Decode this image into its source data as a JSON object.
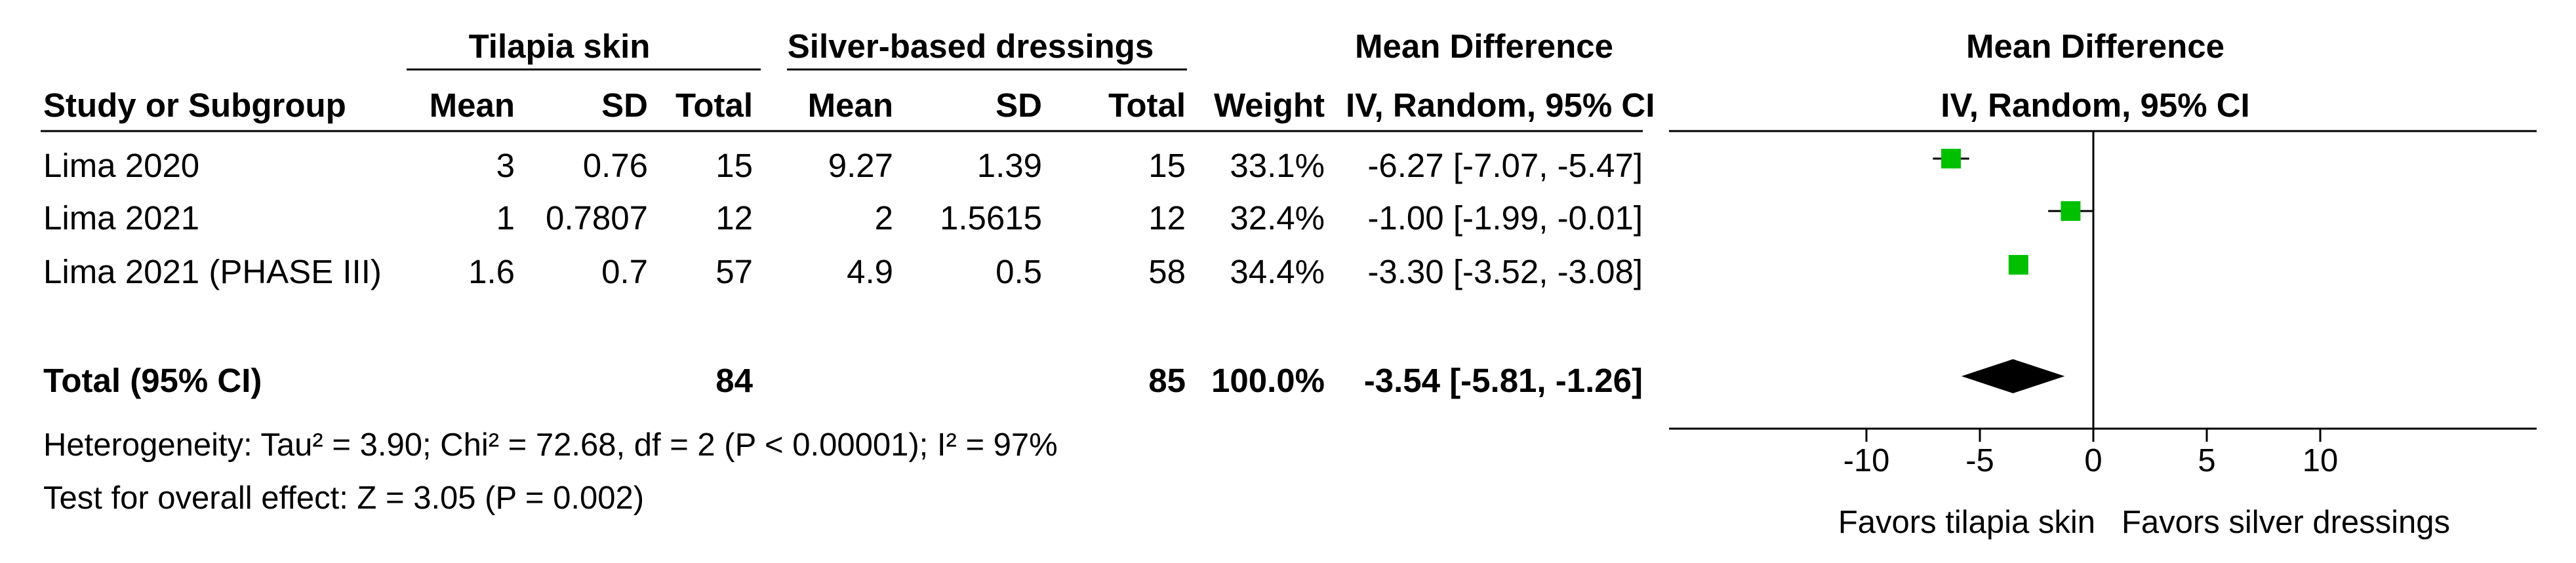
{
  "header": {
    "group1": "Tilapia skin",
    "group2": "Silver-based dressings",
    "effect_title": "Mean Difference",
    "plot_title": "Mean Difference",
    "study_col": "Study or Subgroup",
    "mean1": "Mean",
    "sd1": "SD",
    "total1": "Total",
    "mean2": "Mean",
    "sd2": "SD",
    "total2": "Total",
    "weight": "Weight",
    "method": "IV, Random, 95% CI",
    "plot_method": "IV, Random, 95% CI"
  },
  "studies": [
    {
      "name": "Lima 2020",
      "mean1": "3",
      "sd1": "0.76",
      "total1": "15",
      "mean2": "9.27",
      "sd2": "1.39",
      "total2": "15",
      "weight": "33.1%",
      "ci": "-6.27 [-7.07, -5.47]"
    },
    {
      "name": "Lima 2021",
      "mean1": "1",
      "sd1": "0.7807",
      "total1": "12",
      "mean2": "2",
      "sd2": "1.5615",
      "total2": "12",
      "weight": "32.4%",
      "ci": "-1.00 [-1.99, -0.01]"
    },
    {
      "name": "Lima 2021 (PHASE III)",
      "mean1": "1.6",
      "sd1": "0.7",
      "total1": "57",
      "mean2": "4.9",
      "sd2": "0.5",
      "total2": "58",
      "weight": "34.4%",
      "ci": "-3.30 [-3.52, -3.08]"
    }
  ],
  "total": {
    "name": "Total (95% CI)",
    "total1": "84",
    "total2": "85",
    "weight": "100.0%",
    "ci": "-3.54 [-5.81, -1.26]"
  },
  "heterogeneity": "Heterogeneity: Tau² = 3.90; Chi² = 72.68, df = 2 (P < 0.00001); I² = 97%",
  "overall_effect": "Test for overall effect: Z = 3.05 (P = 0.002)",
  "colors": {
    "marker": "#00c000",
    "diamond": "#000000",
    "line": "#000000"
  },
  "chart_data": {
    "type": "forest",
    "x": {
      "ticks": [
        -10,
        -5,
        0,
        5,
        10
      ],
      "tick_labels": [
        "-10",
        "-5",
        "0",
        "5",
        "10"
      ],
      "range": [
        -10,
        10
      ]
    },
    "points": [
      {
        "study": "Lima 2020",
        "md": -6.27,
        "lower": -7.07,
        "upper": -5.47,
        "weight": 33.1
      },
      {
        "study": "Lima 2021",
        "md": -1.0,
        "lower": -1.99,
        "upper": -0.01,
        "weight": 32.4
      },
      {
        "study": "Lima 2021 (PHASE III)",
        "md": -3.3,
        "lower": -3.52,
        "upper": -3.08,
        "weight": 34.4
      }
    ],
    "pooled": {
      "md": -3.54,
      "lower": -5.81,
      "upper": -1.26
    },
    "favors_left": "Favors tilapia skin",
    "favors_right": "Favors silver dressings"
  }
}
